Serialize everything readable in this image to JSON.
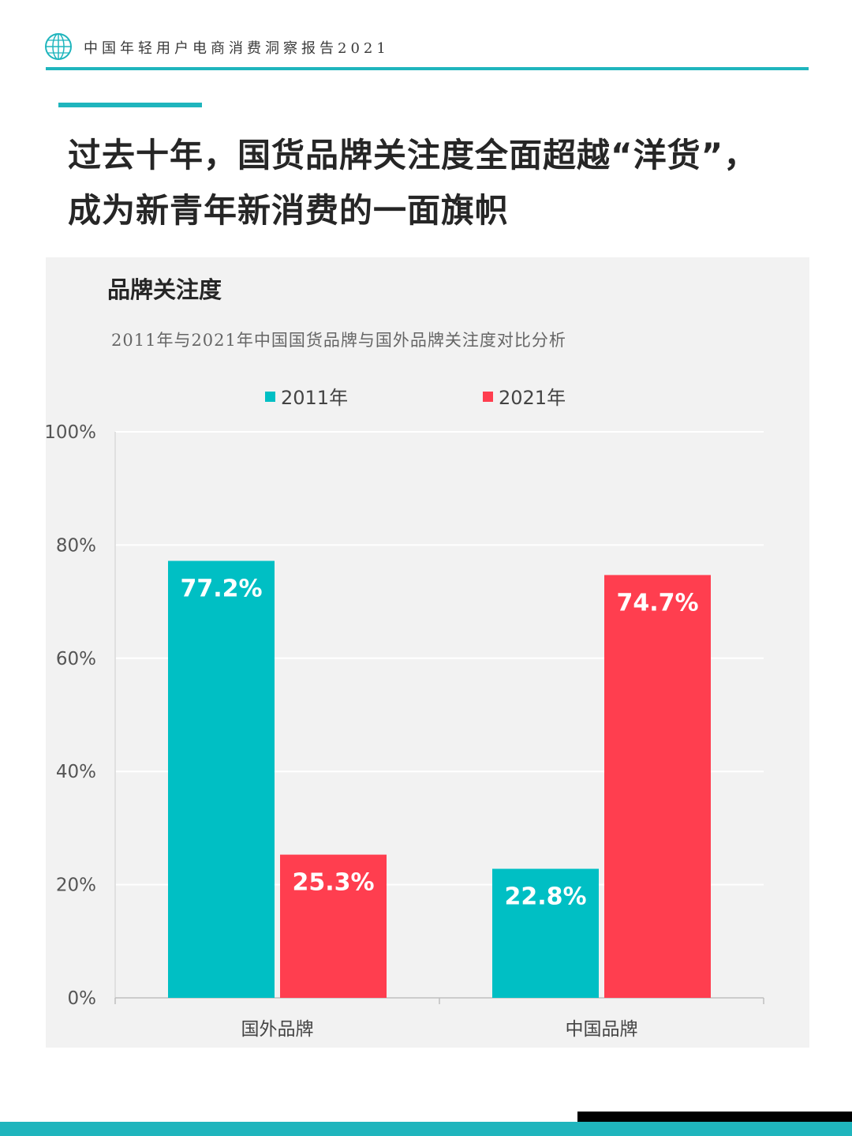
{
  "header": {
    "report_title": "中国年轻用户电商消费洞察报告2021",
    "logo_icon": "globe-icon"
  },
  "headline": {
    "line1": "过去十年，国货品牌关注度全面超越“洋货”，",
    "line2": "成为新青年新消费的一面旗帜"
  },
  "chart_data": {
    "type": "bar",
    "title": "品牌关注度",
    "subtitle": "2011年与2021年中国国货品牌与国外品牌关注度对比分析",
    "categories": [
      "国外品牌",
      "中国品牌"
    ],
    "series": [
      {
        "name": "2011年",
        "values": [
          77.2,
          22.8
        ],
        "color": "#00bfc4",
        "labels": [
          "77.2%",
          "22.8%"
        ]
      },
      {
        "name": "2021年",
        "values": [
          25.3,
          74.7
        ],
        "color": "#ff3e4f",
        "labels": [
          "25.3%",
          "74.7%"
        ]
      }
    ],
    "ylim": [
      0,
      100
    ],
    "yticks": [
      "0%",
      "20%",
      "40%",
      "60%",
      "80%",
      "100%"
    ],
    "ytick_values": [
      0,
      20,
      40,
      60,
      80,
      100
    ],
    "grid": true,
    "legend": "top"
  },
  "colors": {
    "accent": "#1fb5bd",
    "panel_bg": "#f2f2f2"
  }
}
